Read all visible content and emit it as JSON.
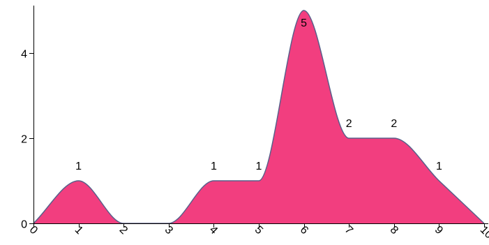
{
  "chart_data": {
    "type": "area",
    "x": [
      0,
      1,
      2,
      3,
      4,
      5,
      6,
      7,
      8,
      9,
      10
    ],
    "series": [
      {
        "values": [
          0,
          1,
          0,
          0,
          1,
          1,
          5,
          2,
          2,
          1,
          0
        ],
        "color": "#f23e7f",
        "stroke": "#5a5f8a"
      }
    ],
    "data_labels": [
      {
        "x": 1,
        "text": "1"
      },
      {
        "x": 4,
        "text": "1"
      },
      {
        "x": 5,
        "text": "1"
      },
      {
        "x": 6,
        "text": "5"
      },
      {
        "x": 7,
        "text": "2"
      },
      {
        "x": 8,
        "text": "2"
      },
      {
        "x": 9,
        "text": "1"
      }
    ],
    "x_ticks": [
      "0",
      "1",
      "2",
      "3",
      "4",
      "5",
      "6",
      "7",
      "8",
      "9",
      "10"
    ],
    "y_ticks": [
      "0",
      "2",
      "4"
    ],
    "xlim": [
      0,
      10
    ],
    "ylim": [
      0,
      5
    ],
    "grid": false,
    "legend": "none",
    "curve": "smooth"
  }
}
